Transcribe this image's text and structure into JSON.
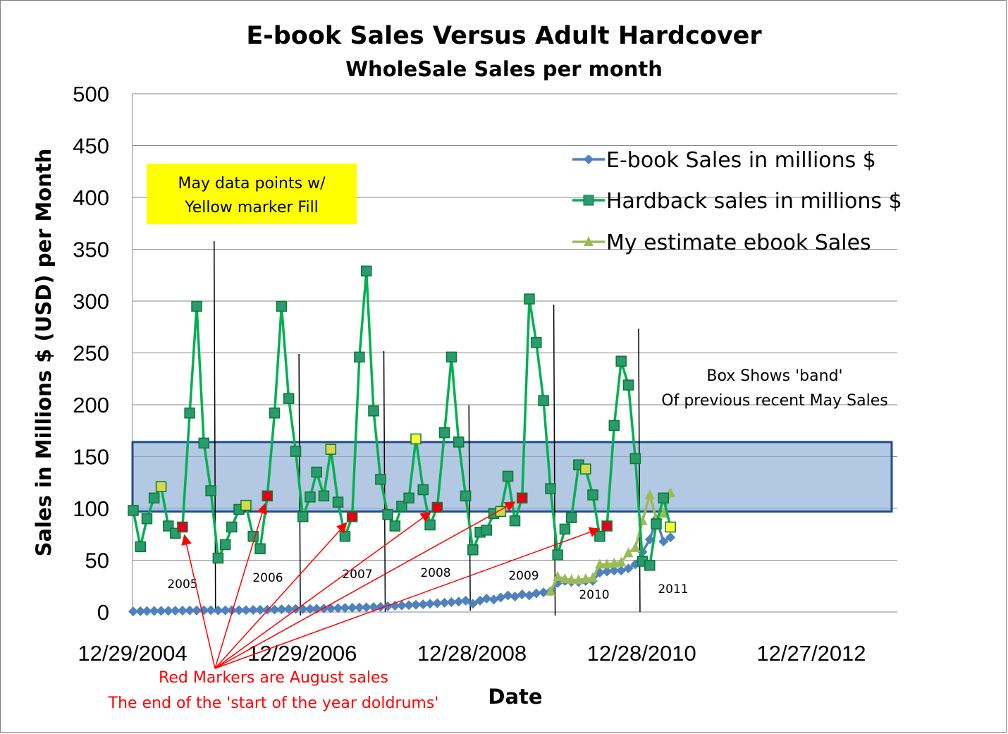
{
  "chart_data": {
    "type": "line",
    "title": "E-book Sales Versus Adult Hardcover",
    "subtitle": "WholeSale Sales per month",
    "xlabel": "Date",
    "ylabel": "Sales in Millions $ (USD) per Month",
    "ylim": [
      0,
      500
    ],
    "yticks": [
      "0",
      "50",
      "100",
      "150",
      "200",
      "250",
      "300",
      "350",
      "400",
      "450",
      "500"
    ],
    "xticks": [
      "12/29/2004",
      "12/29/2006",
      "12/28/2008",
      "12/28/2010",
      "12/27/2012"
    ],
    "xlim": [
      "2004-12-29",
      "2014-01-01"
    ],
    "grid": "horizontal",
    "legend_position": "right",
    "series": [
      {
        "name": "E-book Sales in millions $",
        "color": "#4f81bd",
        "marker": "diamond",
        "x": [
          "2005-01",
          "2005-02",
          "2005-03",
          "2005-04",
          "2005-05",
          "2005-06",
          "2005-07",
          "2005-08",
          "2005-09",
          "2005-10",
          "2005-11",
          "2005-12",
          "2006-01",
          "2006-02",
          "2006-03",
          "2006-04",
          "2006-05",
          "2006-06",
          "2006-07",
          "2006-08",
          "2006-09",
          "2006-10",
          "2006-11",
          "2006-12",
          "2007-01",
          "2007-02",
          "2007-03",
          "2007-04",
          "2007-05",
          "2007-06",
          "2007-07",
          "2007-08",
          "2007-09",
          "2007-10",
          "2007-11",
          "2007-12",
          "2008-01",
          "2008-02",
          "2008-03",
          "2008-04",
          "2008-05",
          "2008-06",
          "2008-07",
          "2008-08",
          "2008-09",
          "2008-10",
          "2008-11",
          "2008-12",
          "2009-01",
          "2009-02",
          "2009-03",
          "2009-04",
          "2009-05",
          "2009-06",
          "2009-07",
          "2009-08",
          "2009-09",
          "2009-10",
          "2009-11",
          "2009-12",
          "2010-01",
          "2010-02",
          "2010-03",
          "2010-04",
          "2010-05",
          "2010-06",
          "2010-07",
          "2010-08",
          "2010-09",
          "2010-10",
          "2010-11",
          "2010-12",
          "2011-01",
          "2011-02",
          "2011-03",
          "2011-04",
          "2011-05"
        ],
        "values": [
          0.5,
          0.8,
          0.9,
          1,
          1.1,
          1.2,
          1.3,
          1.4,
          1.5,
          1.6,
          1.7,
          1.8,
          1.5,
          1.6,
          1.7,
          1.8,
          1.9,
          2,
          2.1,
          2.2,
          2.4,
          2.6,
          2.8,
          3,
          2.8,
          3,
          3.1,
          3.3,
          3.5,
          3.7,
          4,
          4.2,
          4.4,
          4.6,
          4.8,
          5,
          5.5,
          6,
          6.3,
          6.6,
          7,
          7.4,
          8,
          8.5,
          9,
          9.5,
          10,
          11,
          8,
          11,
          13,
          12,
          14,
          16,
          15,
          17,
          16,
          18,
          19,
          20,
          28,
          30,
          29,
          29,
          30,
          30,
          38,
          39,
          40,
          40,
          42,
          46,
          58,
          70,
          90,
          68,
          72
        ]
      },
      {
        "name": "Hardback sales in millions $",
        "color": "#00b050",
        "marker": "square",
        "x": [
          "2005-01",
          "2005-02",
          "2005-03",
          "2005-04",
          "2005-05",
          "2005-06",
          "2005-07",
          "2005-08",
          "2005-09",
          "2005-10",
          "2005-11",
          "2005-12",
          "2006-01",
          "2006-02",
          "2006-03",
          "2006-04",
          "2006-05",
          "2006-06",
          "2006-07",
          "2006-08",
          "2006-09",
          "2006-10",
          "2006-11",
          "2006-12",
          "2007-01",
          "2007-02",
          "2007-03",
          "2007-04",
          "2007-05",
          "2007-06",
          "2007-07",
          "2007-08",
          "2007-09",
          "2007-10",
          "2007-11",
          "2007-12",
          "2008-01",
          "2008-02",
          "2008-03",
          "2008-04",
          "2008-05",
          "2008-06",
          "2008-07",
          "2008-08",
          "2008-09",
          "2008-10",
          "2008-11",
          "2008-12",
          "2009-01",
          "2009-02",
          "2009-03",
          "2009-04",
          "2009-05",
          "2009-06",
          "2009-07",
          "2009-08",
          "2009-09",
          "2009-10",
          "2009-11",
          "2009-12",
          "2010-01",
          "2010-02",
          "2010-03",
          "2010-04",
          "2010-05",
          "2010-06",
          "2010-07",
          "2010-08",
          "2010-09",
          "2010-10",
          "2010-11",
          "2010-12",
          "2011-01",
          "2011-02",
          "2011-03",
          "2011-04",
          "2011-05"
        ],
        "values": [
          98,
          63,
          90,
          110,
          121,
          83,
          76,
          82,
          192,
          295,
          163,
          117,
          52,
          65,
          82,
          99,
          103,
          73,
          61,
          112,
          192,
          295,
          206,
          155,
          92,
          111,
          135,
          112,
          157,
          106,
          73,
          92,
          246,
          329,
          194,
          128,
          94,
          83,
          102,
          110,
          167,
          118,
          84,
          101,
          173,
          246,
          164,
          112,
          60,
          77,
          79,
          95,
          97,
          131,
          88,
          110,
          302,
          260,
          204,
          119,
          55,
          80,
          91,
          142,
          138,
          113,
          73,
          83,
          180,
          242,
          219,
          148,
          49,
          45,
          85,
          110,
          82
        ],
        "may_points_yellow_fill": [
          "2005-05",
          "2006-05",
          "2007-05",
          "2008-05",
          "2009-05",
          "2010-05",
          "2011-05"
        ],
        "august_points_red": [
          "2005-08",
          "2006-08",
          "2007-08",
          "2008-08",
          "2009-08",
          "2010-08"
        ]
      },
      {
        "name": "My estimate ebook Sales",
        "color": "#9bbb59",
        "marker": "triangle",
        "x": [
          "2009-12",
          "2010-01",
          "2010-02",
          "2010-03",
          "2010-04",
          "2010-05",
          "2010-06",
          "2010-07",
          "2010-08",
          "2010-09",
          "2010-10",
          "2010-11",
          "2010-12",
          "2011-01",
          "2011-02",
          "2011-03",
          "2011-04",
          "2011-05"
        ],
        "values": [
          20,
          34,
          32,
          31,
          31,
          32,
          33,
          46,
          46,
          47,
          48,
          57,
          62,
          88,
          113,
          90,
          95,
          115
        ]
      }
    ],
    "band": {
      "from": 97,
      "to": 164,
      "color": "#95b3d7"
    },
    "year_labels": [
      "2005",
      "2006",
      "2007",
      "2008",
      "2009",
      "2010",
      "2011"
    ],
    "year_dividers": [
      "2005-12-15",
      "2006-12-15",
      "2007-12-15",
      "2008-12-15",
      "2009-12-15",
      "2010-12-15"
    ]
  },
  "annotations": {
    "may_box_line1": "May data points w/",
    "may_box_line2": "Yellow marker Fill",
    "band_note_line1": "Box Shows 'band'",
    "band_note_line2": "Of previous recent  May Sales",
    "red_note_line1": "Red Markers are August sales",
    "red_note_line2": "The end of the 'start of the year doldrums'"
  }
}
